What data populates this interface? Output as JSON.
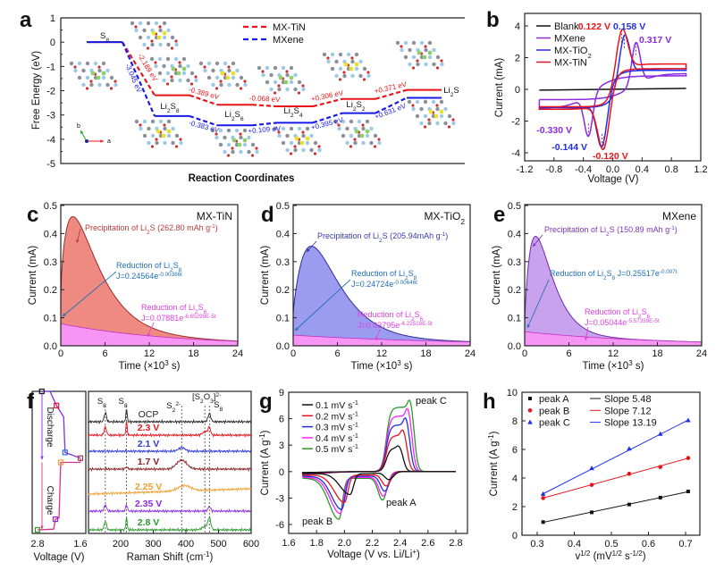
{
  "figure": {
    "panel_labels": [
      "a",
      "b",
      "c",
      "d",
      "e",
      "f",
      "g",
      "h"
    ]
  },
  "chart_data": [
    {
      "id": "a",
      "type": "line",
      "title": "",
      "xlabel": "Reaction Coordinates",
      "ylabel": "Free Energy (eV)",
      "ylim": [
        -5,
        1
      ],
      "yticks": [
        "1",
        "0",
        "-1",
        "-2",
        "-3",
        "-4",
        "-5"
      ],
      "species": [
        "S_{8}",
        "Li_{2}S_{8}",
        "Li_{2}S_{6}",
        "Li_{2}S_{4}",
        "Li_{2}S_{2}",
        "Li_{2}S"
      ],
      "axis_labels": {
        "a": "a",
        "b": "b"
      },
      "series": [
        {
          "name": "MX-TiN",
          "color": "#e8141b",
          "energies": [
            0,
            -2.189,
            -2.578,
            -2.646,
            -2.34,
            -1.969
          ],
          "steps": [
            "-2.189 eV",
            "-0.389 eV",
            "-0.068 eV",
            "+0.306 eV",
            "+0.371 eV"
          ]
        },
        {
          "name": "MXene",
          "color": "#1a1ae6",
          "energies": [
            0,
            -3.045,
            -3.428,
            -3.319,
            -2.924,
            -2.293
          ],
          "steps": [
            "-3.045 eV",
            "-0.383 eV",
            "+0.109 eV",
            "+0.395 eV",
            "+0.631 eV"
          ]
        }
      ],
      "legend_position": "top-center"
    },
    {
      "id": "b",
      "type": "line",
      "xlabel": "Voltage (V)",
      "ylabel": "Current (mA)",
      "xlim": [
        -1.2,
        1.2
      ],
      "ylim": [
        -4.5,
        4.8
      ],
      "xticks": [
        "-1.2",
        "-0.8",
        "-0.4",
        "0.0",
        "0.4",
        "0.8",
        "1.2"
      ],
      "yticks": [
        "4",
        "2",
        "0",
        "-2",
        "-4"
      ],
      "series": [
        {
          "name": "Blank",
          "color": "#111111"
        },
        {
          "name": "MXene",
          "color": "#8a2be2",
          "anodic_peak_V": 0.317,
          "anodic_peak_mA": 2.95,
          "cathodic_peak_V": -0.33,
          "cathodic_peak_mA": -2.95,
          "anodic_label": "0.317 V",
          "cathodic_label": "-0.330 V"
        },
        {
          "name": "MX-TiO_{2}",
          "color": "#1f2ee8",
          "anodic_peak_V": 0.158,
          "anodic_peak_mA": 3.4,
          "cathodic_peak_V": -0.144,
          "cathodic_peak_mA": -3.6,
          "anodic_label": "0.158 V",
          "cathodic_label": "-0.144 V"
        },
        {
          "name": "MX-TiN",
          "color": "#e8141b",
          "anodic_peak_V": 0.122,
          "anodic_peak_mA": 3.75,
          "cathodic_peak_V": -0.12,
          "cathodic_peak_mA": -3.75,
          "anodic_label": "0.122 V",
          "cathodic_label": "-0.120 V"
        }
      ],
      "legend_position": "top-left"
    },
    {
      "id": "c",
      "type": "area",
      "title": "MX-TiN",
      "xlabel": "Time (×10^{3} s)",
      "ylabel": "Current (mA)",
      "xlim": [
        0,
        24
      ],
      "ylim": [
        0,
        0.5
      ],
      "xticks": [
        "0",
        "6",
        "12",
        "18",
        "24"
      ],
      "yticks": [
        "0.5",
        "0.4",
        "0.3",
        "0.2",
        "0.1",
        "0.0"
      ],
      "peak_current_mA": 0.46,
      "peak_time_ks": 1.7,
      "precipitation_label": "Precipitation of Li_{2}S (262.80 mAh g^{-1})",
      "li2s8_label": "Reduction of Li_{2}S_{8}",
      "li2s8_fit": "J=0.24564e^{-0.00386t}",
      "li2s6_label": "Reduction of Li_{2}S_{6}",
      "li2s6_fit": "J=0.07881e^{-6.65299E-5t}",
      "li2s6_J0": 0.07881,
      "li2s6_k": 6.65299e-05,
      "colors": {
        "fill": "#ef8a82",
        "stroke": "#9b2a2a",
        "text": "#b83a3a"
      }
    },
    {
      "id": "d",
      "type": "area",
      "title": "MX-TiO_{2}",
      "xlabel": "Time (×10^{3} s)",
      "ylabel": "Current (mA)",
      "xlim": [
        0,
        24
      ],
      "ylim": [
        0,
        0.5
      ],
      "xticks": [
        "0",
        "6",
        "12",
        "18",
        "24"
      ],
      "yticks": [
        "0.5",
        "0.4",
        "0.3",
        "0.2",
        "0.1",
        "0.0"
      ],
      "peak_current_mA": 0.355,
      "peak_time_ks": 2.5,
      "precipitation_label": "Precipitation of Li_{2}S (205.94mAh g^{-1})",
      "li2s8_label": "Reduction of Li_{2}S_{8}",
      "li2s8_fit": "J=0.24724e^{-0.00646t}",
      "li2s6_label": "Reduction of Li_{2}S_{6}",
      "li2s6_fit": "J=0.03795e^{-4.22518E-5t}",
      "li2s6_J0": 0.03795,
      "li2s6_k": 4.22518e-05,
      "colors": {
        "fill": "#9b9bf0",
        "stroke": "#2b2b9a",
        "text": "#3a3ab0"
      }
    },
    {
      "id": "e",
      "type": "area",
      "title": "MXene",
      "xlabel": "Time (×10^{3} s)",
      "ylabel": "Current (mA)",
      "xlim": [
        0,
        24
      ],
      "ylim": [
        0,
        0.5
      ],
      "xticks": [
        "0",
        "6",
        "12",
        "18",
        "24"
      ],
      "yticks": [
        "0.5",
        "0.4",
        "0.3",
        "0.2",
        "0.1",
        "0.0"
      ],
      "peak_current_mA": 0.39,
      "peak_time_ks": 1.5,
      "precipitation_label": "Precipitation of Li_{2}S (150.89 mAh g^{-1})",
      "li2s8_label": "Reduction of Li_{2}S_{8}  J=0.25517e^{-0.007t}",
      "li2s8_fit": "",
      "li2s6_label": "Reduction of Li_{2}S_{6}",
      "li2s6_fit": "J=0.05044e^{-5.57359E-5t}",
      "li2s6_J0": 0.05044,
      "li2s6_k": 5.57359e-05,
      "colors": {
        "fill": "#c9a2ee",
        "stroke": "#6e2aa8",
        "text": "#7a34b8"
      }
    },
    {
      "id": "f",
      "type": "line",
      "voltage_profile": {
        "xlabel": "Voltage (V)",
        "xticks": [
          "2.8",
          "1.6"
        ],
        "xlim": [
          2.8,
          1.6
        ],
        "discharge_label": "Discharge",
        "charge_label": "Charge",
        "discharge": [
          [
            2.68,
            0
          ],
          [
            2.45,
            0
          ],
          [
            2.27,
            0.1
          ],
          [
            2.07,
            0.18
          ],
          [
            2.03,
            0.43
          ],
          [
            1.6,
            0.47
          ]
        ],
        "charge": [
          [
            1.6,
            0.5
          ],
          [
            2.15,
            0.5
          ],
          [
            2.2,
            0.89
          ],
          [
            2.3,
            0.9
          ],
          [
            2.35,
            0.97
          ],
          [
            2.8,
            0.975
          ]
        ],
        "markers": [
          [
            2.68,
            0,
            "#111111"
          ],
          [
            2.27,
            0.1,
            "#e8141b"
          ],
          [
            2.03,
            0.43,
            "#2a6fd6"
          ],
          [
            1.6,
            0.47,
            "#a0404a"
          ],
          [
            2.15,
            0.5,
            "#f0a030"
          ],
          [
            2.3,
            0.9,
            "#8a2be2"
          ],
          [
            2.8,
            0.975,
            "#2a9a2a"
          ]
        ]
      },
      "raman": {
        "xlabel": "Raman Shift (cm^{-1})",
        "xlim": [
          100,
          600
        ],
        "xticks": [
          "200",
          "300",
          "400",
          "500",
          "600"
        ],
        "reference_lines": [
          153,
          218,
          387,
          458,
          472
        ],
        "reference_labels": [
          "S_{8}",
          "S_{8}",
          "S_{2}^{2-}",
          "[S_{2}O_{3}]^{2-}",
          "S_{8}"
        ],
        "traces": [
          {
            "label": "OCP",
            "color": "#222222",
            "peaks": [
              [
                153,
                1.0,
                5
              ],
              [
                218,
                1.4,
                3
              ],
              [
                472,
                0.9,
                6
              ]
            ],
            "slope": 0
          },
          {
            "label": "2.3 V",
            "color": "#e8141b",
            "peaks": [
              [
                153,
                0.9,
                5
              ],
              [
                218,
                1.5,
                3
              ],
              [
                460,
                0.4,
                12
              ],
              [
                472,
                0.8,
                5
              ]
            ],
            "slope": 0
          },
          {
            "label": "2.1 V",
            "color": "#2a3ae0",
            "peaks": [
              [
                387,
                0.4,
                14
              ]
            ],
            "slope": 0
          },
          {
            "label": "1.7 V",
            "color": "#8a2020",
            "peaks": [
              [
                218,
                0.2,
                6
              ],
              [
                387,
                1.0,
                22
              ]
            ],
            "slope": 0
          },
          {
            "label": "2.25 V",
            "color": "#f0a030",
            "peaks": [
              [
                395,
                0.6,
                28
              ]
            ],
            "slope": 0.6
          },
          {
            "label": "2.35 V",
            "color": "#8a2be2",
            "peaks": [
              [
                153,
                0.7,
                5
              ],
              [
                218,
                0.7,
                4
              ],
              [
                472,
                0.5,
                6
              ]
            ],
            "slope": 0
          },
          {
            "label": "2.8 V",
            "color": "#2a9a2a",
            "peaks": [
              [
                153,
                1.0,
                5
              ],
              [
                218,
                1.4,
                3
              ],
              [
                460,
                0.4,
                14
              ],
              [
                472,
                1.2,
                6
              ]
            ],
            "slope": 0
          }
        ]
      }
    },
    {
      "id": "g",
      "type": "line",
      "xlabel": "Voltage (V vs. Li/Li^{+})",
      "ylabel": "Current (A g^{-1})",
      "xlim": [
        1.6,
        2.88
      ],
      "ylim": [
        -7,
        9
      ],
      "xticks": [
        "1.6",
        "1.8",
        "2.0",
        "2.2",
        "2.4",
        "2.6",
        "2.8"
      ],
      "yticks": [
        "9",
        "6",
        "3",
        "0",
        "-3",
        "-6"
      ],
      "annotations": {
        "peak_a": "peak A",
        "peak_b": "peak B",
        "peak_c": "peak C"
      },
      "series": [
        {
          "name": "0.1 mV s^{-1}",
          "color": "#111111",
          "peakA": 0.9,
          "VA": 2.32,
          "peakB": 2.6,
          "VB": 2.04,
          "peakC": 2.9,
          "VC": 2.39,
          "shoulder": 2.7
        },
        {
          "name": "0.2 mV s^{-1}",
          "color": "#e8141b",
          "peakA": 1.6,
          "VA": 2.3,
          "peakB": 3.5,
          "VB": 2.0,
          "peakC": 4.7,
          "VC": 2.42,
          "shoulder": 4.1
        },
        {
          "name": "0.3 mV s^{-1}",
          "color": "#2030e0",
          "peakA": 2.15,
          "VA": 2.29,
          "peakB": 4.3,
          "VB": 1.98,
          "peakC": 6.05,
          "VC": 2.44,
          "shoulder": 5.3
        },
        {
          "name": "0.4 mV s^{-1}",
          "color": "#ff20ff",
          "peakA": 2.65,
          "VA": 2.28,
          "peakB": 4.75,
          "VB": 1.97,
          "peakC": 7.1,
          "VC": 2.455,
          "shoulder": 6.3
        },
        {
          "name": "0.5 mV s^{-1}",
          "color": "#2a9a2a",
          "peakA": 3.05,
          "VA": 2.275,
          "peakB": 5.4,
          "VB": 1.96,
          "peakC": 8.05,
          "VC": 2.47,
          "shoulder": 7.3
        }
      ],
      "legend_position": "top-left"
    },
    {
      "id": "h",
      "type": "scatter",
      "xlabel": "v^{1/2} (mV^{1/2} s^{-1/2})",
      "ylabel": "Current (A g^{-1})",
      "xlim": [
        0.26,
        0.74
      ],
      "ylim": [
        0,
        10
      ],
      "xticks": [
        "0.3",
        "0.4",
        "0.5",
        "0.6",
        "0.7"
      ],
      "yticks": [
        "10",
        "8",
        "6",
        "4",
        "2",
        "0"
      ],
      "x": [
        0.316,
        0.447,
        0.548,
        0.632,
        0.707
      ],
      "series": [
        {
          "name": "peak A",
          "color": "#111111",
          "marker": "square",
          "values": [
            0.92,
            1.6,
            2.15,
            2.63,
            3.06
          ],
          "fit_label": "Slope 5.48",
          "slope": 5.48,
          "intercept": -0.83
        },
        {
          "name": "peak B",
          "color": "#e8141b",
          "marker": "circle",
          "values": [
            2.6,
            3.52,
            4.3,
            4.77,
            5.4
          ],
          "fit_label": "Slope 7.12",
          "slope": 7.12,
          "intercept": 0.35
        },
        {
          "name": "peak C",
          "color": "#1f2ee8",
          "marker": "triangle",
          "values": [
            2.88,
            4.68,
            6.05,
            7.08,
            8.03
          ],
          "fit_label": "Slope 13.19",
          "slope": 13.19,
          "intercept": -1.27
        }
      ],
      "legend_position": "top-left"
    }
  ]
}
